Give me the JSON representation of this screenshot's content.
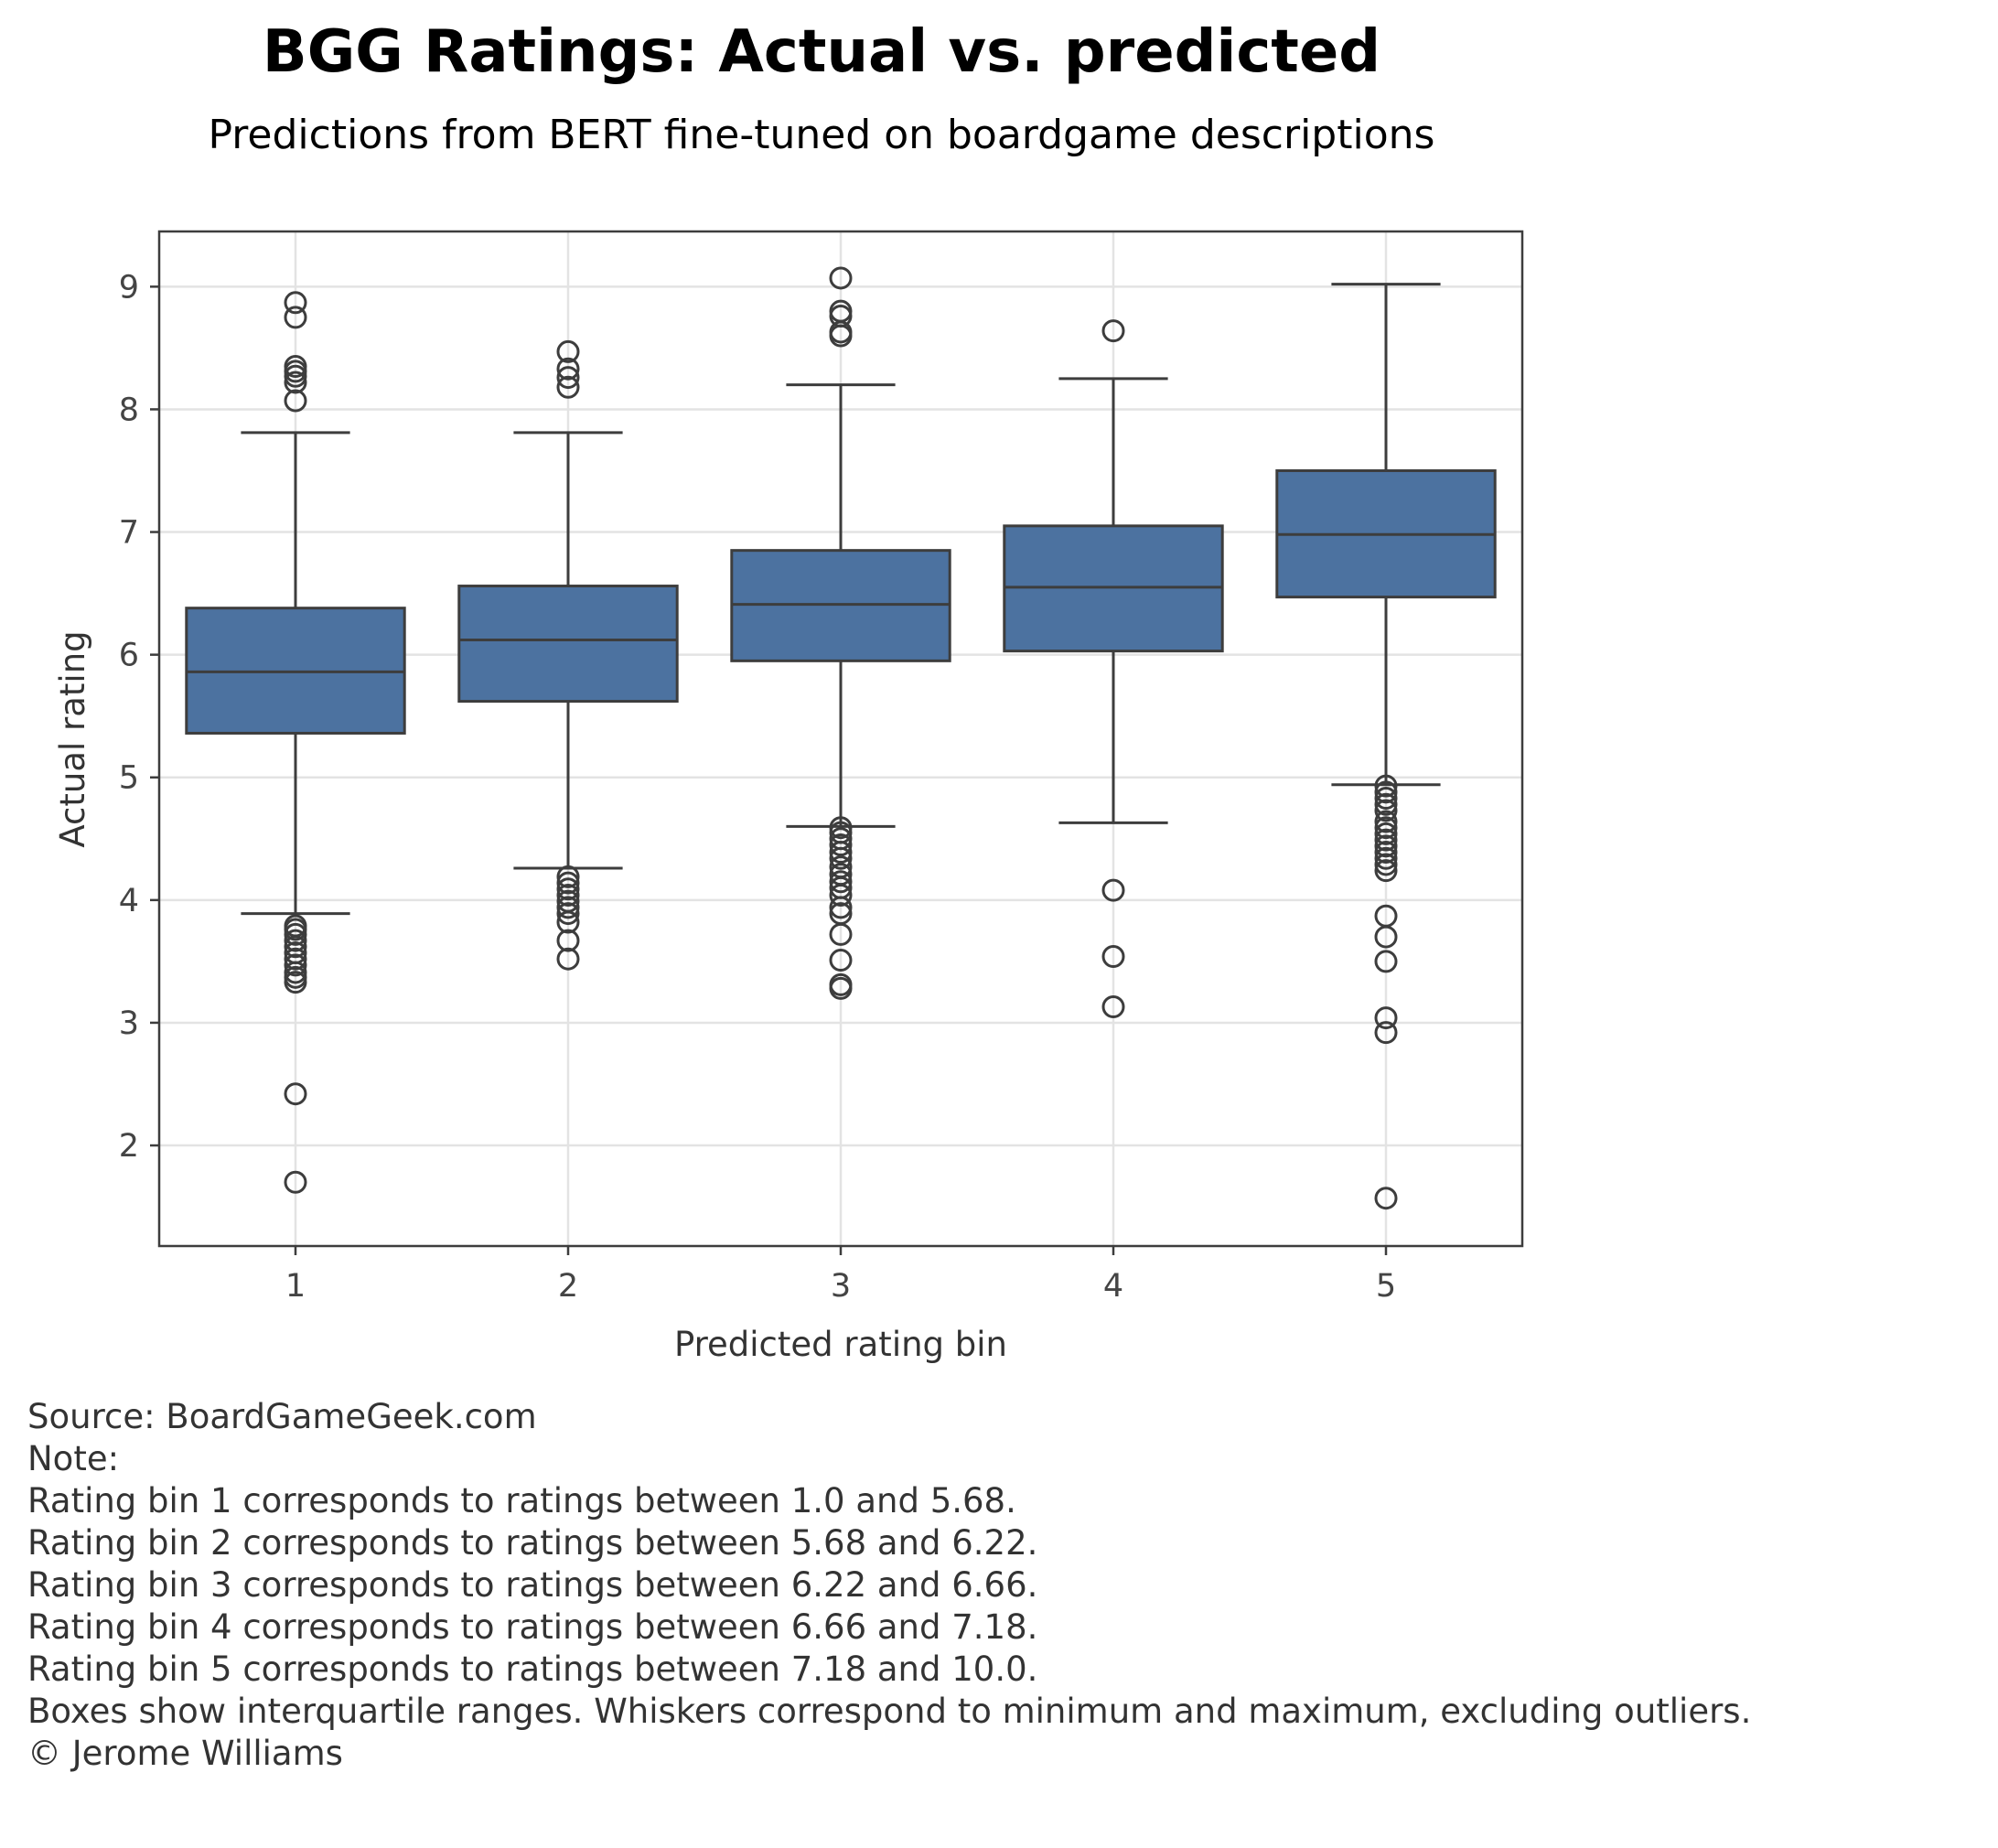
{
  "chart_data": {
    "type": "box",
    "title": "BGG Ratings: Actual vs. predicted",
    "subtitle": "Predictions from BERT fine-tuned on boardgame descriptions",
    "xlabel": "Predicted rating bin",
    "ylabel": "Actual rating",
    "categories": [
      "1",
      "2",
      "3",
      "4",
      "5"
    ],
    "yticks": [
      2,
      3,
      4,
      5,
      6,
      7,
      8,
      9
    ],
    "ylim": [
      1.18,
      9.45
    ],
    "grid": true,
    "box_color": "#4c72a0",
    "line_color": "#3d3d3d",
    "boxes": [
      {
        "category": "1",
        "whisker_low": 3.89,
        "q1": 5.36,
        "median": 5.86,
        "q3": 6.38,
        "whisker_high": 7.81,
        "outliers": [
          8.87,
          8.75,
          8.35,
          8.31,
          8.27,
          8.22,
          8.07,
          3.79,
          3.76,
          3.72,
          3.67,
          3.62,
          3.57,
          3.52,
          3.47,
          3.41,
          3.37,
          3.33,
          2.42,
          1.7
        ]
      },
      {
        "category": "2",
        "whisker_low": 4.26,
        "q1": 5.62,
        "median": 6.12,
        "q3": 6.56,
        "whisker_high": 7.81,
        "outliers": [
          8.47,
          8.33,
          8.26,
          8.18,
          4.19,
          4.14,
          4.09,
          4.04,
          3.99,
          3.94,
          3.89,
          3.82,
          3.67,
          3.52
        ]
      },
      {
        "category": "3",
        "whisker_low": 4.6,
        "q1": 5.95,
        "median": 6.41,
        "q3": 6.85,
        "whisker_high": 8.2,
        "outliers": [
          9.07,
          8.8,
          8.76,
          8.63,
          8.6,
          4.59,
          4.55,
          4.5,
          4.45,
          4.39,
          4.34,
          4.27,
          4.21,
          4.15,
          4.1,
          4.04,
          3.94,
          3.89,
          3.72,
          3.51,
          3.31,
          3.28
        ]
      },
      {
        "category": "4",
        "whisker_low": 4.63,
        "q1": 6.03,
        "median": 6.55,
        "q3": 7.05,
        "whisker_high": 8.25,
        "outliers": [
          8.64,
          4.08,
          3.54,
          3.13
        ]
      },
      {
        "category": "5",
        "whisker_low": 4.94,
        "q1": 6.47,
        "median": 6.98,
        "q3": 7.5,
        "whisker_high": 9.02,
        "outliers": [
          4.93,
          4.88,
          4.83,
          4.78,
          4.73,
          4.64,
          4.59,
          4.54,
          4.49,
          4.44,
          4.39,
          4.34,
          4.29,
          4.24,
          3.87,
          3.7,
          3.5,
          3.04,
          2.92,
          1.57
        ]
      }
    ]
  },
  "footnotes": [
    "Source: BoardGameGeek.com",
    "Note:",
    "Rating bin 1 corresponds to ratings between 1.0 and 5.68.",
    "Rating bin 2 corresponds to ratings between 5.68 and 6.22.",
    "Rating bin 3 corresponds to ratings between 6.22 and 6.66.",
    "Rating bin 4 corresponds to ratings between 6.66 and 7.18.",
    "Rating bin 5 corresponds to ratings between 7.18 and 10.0.",
    "Boxes show interquartile ranges. Whiskers correspond to minimum and maximum, excluding outliers.",
    "© Jerome Williams"
  ]
}
